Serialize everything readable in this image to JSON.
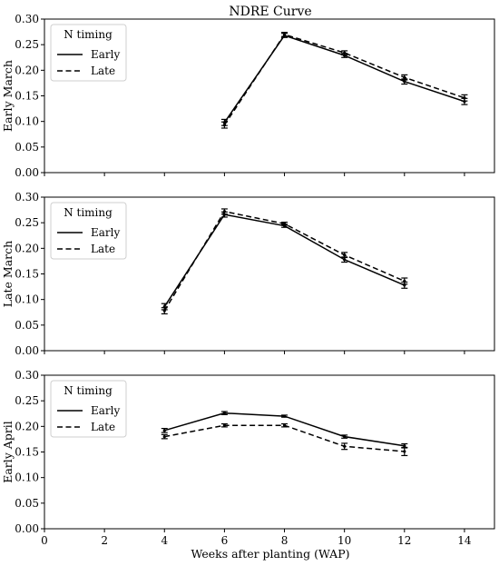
{
  "chart_data": {
    "type": "line",
    "title": "NDRE Curve",
    "xlabel": "Weeks after planting (WAP)",
    "xlim": [
      0,
      15
    ],
    "xticks": [
      "0",
      "2",
      "4",
      "6",
      "8",
      "10",
      "12",
      "14"
    ],
    "ylim": [
      0,
      0.3
    ],
    "yticks": [
      "0.00",
      "0.05",
      "0.10",
      "0.15",
      "0.20",
      "0.25",
      "0.30"
    ],
    "grid": false,
    "legend": {
      "title": "N timing",
      "placement": "top-left"
    },
    "panels": [
      {
        "ylabel": "Early March",
        "series": [
          {
            "name": "Early",
            "style": "solid",
            "x": [
              6,
              8,
              10,
              12,
              14
            ],
            "y": [
              0.098,
              0.268,
              0.229,
              0.178,
              0.139
            ],
            "err": [
              0.006,
              0.004,
              0.004,
              0.005,
              0.006
            ]
          },
          {
            "name": "Late",
            "style": "dashed",
            "x": [
              6,
              8,
              10,
              12,
              14
            ],
            "y": [
              0.093,
              0.27,
              0.234,
              0.186,
              0.146
            ],
            "err": [
              0.006,
              0.004,
              0.004,
              0.005,
              0.006
            ]
          }
        ]
      },
      {
        "ylabel": "Late March",
        "series": [
          {
            "name": "Early",
            "style": "solid",
            "x": [
              4,
              6,
              8,
              10,
              12
            ],
            "y": [
              0.086,
              0.266,
              0.244,
              0.178,
              0.128
            ],
            "err": [
              0.006,
              0.005,
              0.003,
              0.005,
              0.006
            ]
          },
          {
            "name": "Late",
            "style": "dashed",
            "x": [
              4,
              6,
              8,
              10,
              12
            ],
            "y": [
              0.078,
              0.272,
              0.248,
              0.187,
              0.136
            ],
            "err": [
              0.006,
              0.005,
              0.003,
              0.005,
              0.006
            ]
          }
        ]
      },
      {
        "ylabel": "Early April",
        "series": [
          {
            "name": "Early",
            "style": "solid",
            "x": [
              4,
              6,
              8,
              10,
              12
            ],
            "y": [
              0.192,
              0.226,
              0.22,
              0.18,
              0.162
            ],
            "err": [
              0.004,
              0.003,
              0.002,
              0.003,
              0.004
            ]
          },
          {
            "name": "Late",
            "style": "dashed",
            "x": [
              4,
              6,
              8,
              10,
              12
            ],
            "y": [
              0.18,
              0.202,
              0.202,
              0.161,
              0.151
            ],
            "err": [
              0.004,
              0.003,
              0.003,
              0.006,
              0.008
            ]
          }
        ]
      }
    ]
  }
}
